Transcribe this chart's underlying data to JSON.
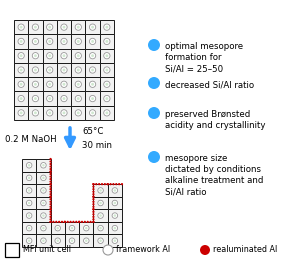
{
  "bg_color": "#ffffff",
  "grid_color": "#1a1a1a",
  "cell_bg": "#f2f2f2",
  "dot_color": "#999999",
  "dot_inner": "#d0e8d0",
  "red_dot_color": "#cc0000",
  "blue_dot_color": "#33aaff",
  "arrow_color": "#3399ff",
  "naoh_label": "0.2 M NaOH",
  "temp_label": "65°C",
  "time_label": "30 min",
  "bullet1": "optimal mesopore\nformation for\nSi/Al = 25–50",
  "bullet2": "decreased Si/Al ratio",
  "bullet3": "preserved Brønsted\nacidity and crystallinity",
  "bullet4": "mesopore size\ndictated by conditions\nalkaline treatment and\nSi/Al ratio",
  "legend1": "MFI unit cell",
  "legend2": "framework Al",
  "legend3": "realuminated Al",
  "text_fontsize": 6.2,
  "legend_fontsize": 5.8
}
